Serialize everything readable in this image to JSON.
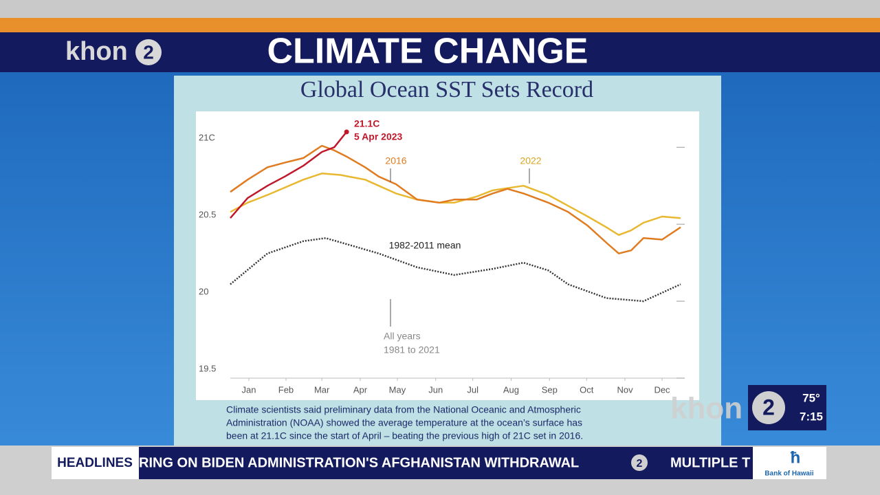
{
  "header": {
    "logo_text": "khon",
    "logo_number": "2",
    "title": "CLIMATE CHANGE"
  },
  "slide": {
    "title": "Global Ocean SST Sets Record",
    "caption": [
      "Climate scientists said preliminary data from the National Oceanic and Atmospheric",
      "Administration (NOAA) showed the average temperature at the ocean’s surface has",
      "been at 21.1C since the start of April – beating the previous high of 21C set in 2016."
    ]
  },
  "chart_data": {
    "type": "line",
    "xlim": [
      1,
      365
    ],
    "xticks": [
      {
        "value": 16,
        "label": "Jan"
      },
      {
        "value": 46,
        "label": "Feb"
      },
      {
        "value": 75,
        "label": "Mar"
      },
      {
        "value": 106,
        "label": "Apr"
      },
      {
        "value": 136,
        "label": "May"
      },
      {
        "value": 167,
        "label": "Jun"
      },
      {
        "value": 197,
        "label": "Jul"
      },
      {
        "value": 228,
        "label": "Aug"
      },
      {
        "value": 259,
        "label": "Sep"
      },
      {
        "value": 289,
        "label": "Oct"
      },
      {
        "value": 320,
        "label": "Nov"
      },
      {
        "value": 350,
        "label": "Dec"
      }
    ],
    "ylim": [
      19.5,
      21.22
    ],
    "yticks": [
      19.5,
      20,
      20.5,
      {
        "value": 21,
        "label": "21C"
      }
    ],
    "series": [
      {
        "color": "#c0172a",
        "x": [
          1,
          15,
          31,
          45,
          60,
          75,
          85,
          95
        ],
        "values": [
          20.54,
          20.67,
          20.75,
          20.81,
          20.88,
          20.97,
          21.0,
          21.1
        ]
      },
      {
        "name": "2016",
        "color": "#e07b20",
        "x": [
          1,
          15,
          31,
          45,
          60,
          75,
          85,
          95,
          110,
          121,
          135,
          152,
          170,
          182,
          200,
          213,
          225,
          238,
          258,
          274,
          290,
          305,
          315,
          325,
          335,
          350,
          365
        ],
        "values": [
          20.71,
          20.79,
          20.87,
          20.9,
          20.93,
          21.01,
          20.98,
          20.94,
          20.87,
          20.81,
          20.76,
          20.66,
          20.64,
          20.66,
          20.66,
          20.7,
          20.73,
          20.7,
          20.64,
          20.58,
          20.49,
          20.38,
          20.31,
          20.33,
          20.41,
          20.4,
          20.48
        ]
      },
      {
        "name": "2022",
        "color": "#e8b830",
        "x": [
          1,
          15,
          31,
          60,
          75,
          90,
          110,
          121,
          135,
          152,
          170,
          182,
          200,
          213,
          238,
          258,
          274,
          290,
          305,
          315,
          325,
          335,
          350,
          365
        ],
        "values": [
          20.58,
          20.64,
          20.69,
          20.79,
          20.83,
          20.82,
          20.79,
          20.75,
          20.7,
          20.66,
          20.64,
          20.64,
          20.68,
          20.72,
          20.75,
          20.69,
          20.62,
          20.55,
          20.48,
          20.43,
          20.46,
          20.51,
          20.55,
          20.54
        ]
      },
      {
        "name": "1982-2011 mean",
        "color": "#333333",
        "x": [
          1,
          31,
          60,
          78,
          91,
          121,
          152,
          182,
          213,
          238,
          258,
          274,
          305,
          335,
          365
        ],
        "values": [
          20.11,
          20.31,
          20.39,
          20.41,
          20.38,
          20.31,
          20.22,
          20.17,
          20.21,
          20.25,
          20.2,
          20.11,
          20.02,
          20.0,
          20.11
        ]
      }
    ],
    "annotations": [
      "21.1C",
      "5 Apr 2023",
      "All years",
      "1981 to 2021"
    ]
  },
  "bug": {
    "logo_text": "khon",
    "logo_number": "2",
    "temperature": "75°",
    "time": "7:15"
  },
  "ticker": {
    "label": "HEADLINES",
    "text": "RING ON BIDEN ADMINISTRATION'S AFGHANISTAN WITHDRAWAL",
    "logo_number": "2",
    "next": "MULTIPLE T",
    "sponsor": "Bank of Hawaii"
  }
}
